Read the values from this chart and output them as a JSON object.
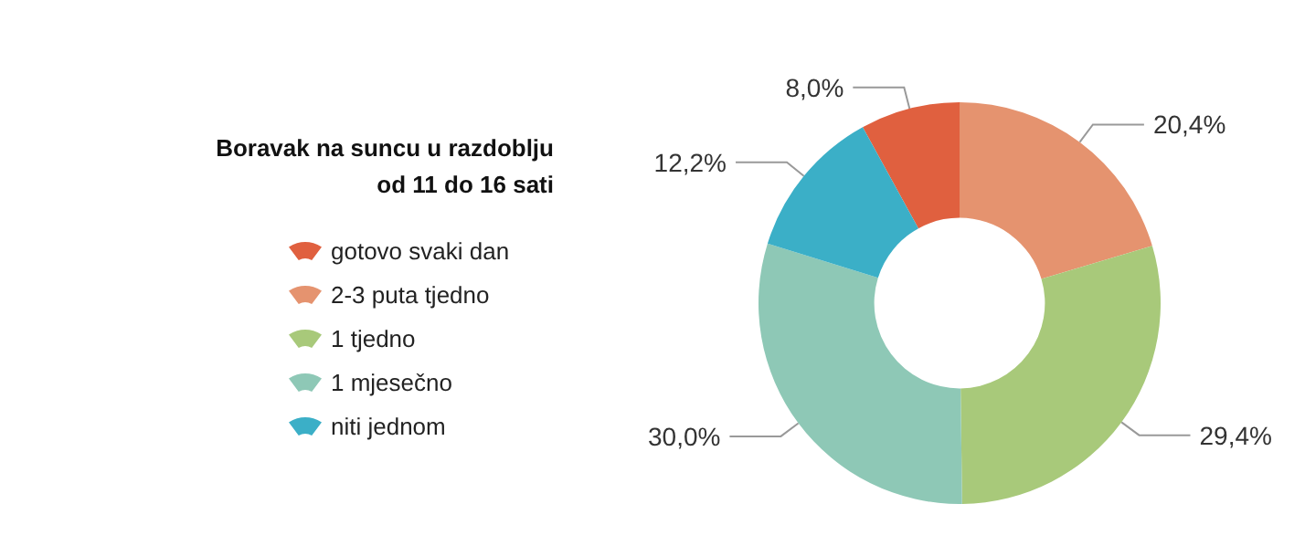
{
  "chart_data": {
    "type": "donut",
    "title": "Boravak na suncu u razdoblju\nod 11 do 16 sati",
    "categories": [
      "gotovo svaki dan",
      "2-3 puta tjedno",
      "1 tjedno",
      "1 mjesečno",
      "niti jednom"
    ],
    "values": [
      8.0,
      20.4,
      29.4,
      30.0,
      12.2
    ],
    "colors": [
      "#e0603f",
      "#e5936f",
      "#a8c97a",
      "#8ec8b6",
      "#3bafc7"
    ],
    "value_labels": [
      "8,0%",
      "20,4%",
      "29,4%",
      "30,0%",
      "12,2%"
    ],
    "legend": "left"
  }
}
